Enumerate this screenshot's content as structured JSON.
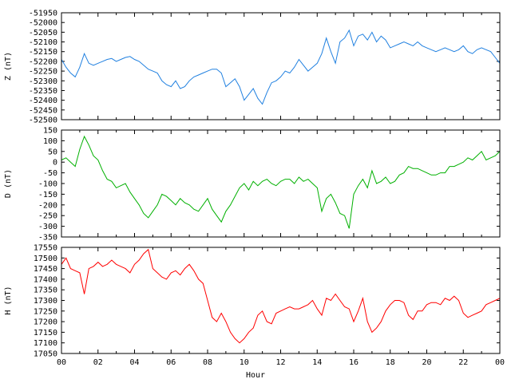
{
  "chart_data": [
    {
      "type": "line",
      "title": "",
      "xlabel": "",
      "ylabel": "Z (nT)",
      "xlim": [
        0,
        24
      ],
      "ylim": [
        -52500,
        -51950
      ],
      "yticks": [
        -51950,
        -52000,
        -52050,
        -52100,
        -52150,
        -52200,
        -52250,
        -52300,
        -52350,
        -52400,
        -52450,
        -52500
      ],
      "grid": false,
      "color": "#2080e0",
      "series": [
        {
          "x": [
            0,
            0.25,
            0.5,
            0.75,
            1.0,
            1.25,
            1.5,
            1.75,
            2.0,
            2.25,
            2.5,
            2.75,
            3.0,
            3.25,
            3.5,
            3.75,
            4.0,
            4.25,
            4.5,
            4.75,
            5.0,
            5.25,
            5.5,
            5.75,
            6.0,
            6.25,
            6.5,
            6.75,
            7.0,
            7.25,
            7.5,
            7.75,
            8.0,
            8.25,
            8.5,
            8.75,
            9.0,
            9.25,
            9.5,
            9.75,
            10.0,
            10.25,
            10.5,
            10.75,
            11.0,
            11.25,
            11.5,
            11.75,
            12.0,
            12.25,
            12.5,
            12.75,
            13.0,
            13.25,
            13.5,
            13.75,
            14.0,
            14.25,
            14.5,
            14.75,
            15.0,
            15.25,
            15.5,
            15.75,
            16.0,
            16.25,
            16.5,
            16.75,
            17.0,
            17.25,
            17.5,
            17.75,
            18.0,
            18.25,
            18.5,
            18.75,
            19.0,
            19.25,
            19.5,
            19.75,
            20.0,
            20.25,
            20.5,
            20.75,
            21.0,
            21.25,
            21.5,
            21.75,
            22.0,
            22.25,
            22.5,
            22.75,
            23.0,
            23.25,
            23.5,
            23.75,
            24.0
          ],
          "y": [
            -52190,
            -52230,
            -52260,
            -52280,
            -52230,
            -52160,
            -52210,
            -52220,
            -52210,
            -52200,
            -52190,
            -52185,
            -52200,
            -52190,
            -52180,
            -52175,
            -52190,
            -52200,
            -52220,
            -52240,
            -52250,
            -52260,
            -52300,
            -52320,
            -52330,
            -52300,
            -52340,
            -52330,
            -52300,
            -52280,
            -52270,
            -52260,
            -52250,
            -52240,
            -52240,
            -52260,
            -52330,
            -52310,
            -52290,
            -52330,
            -52400,
            -52370,
            -52340,
            -52390,
            -52420,
            -52360,
            -52310,
            -52300,
            -52280,
            -52250,
            -52260,
            -52230,
            -52190,
            -52220,
            -52250,
            -52230,
            -52210,
            -52160,
            -52080,
            -52150,
            -52210,
            -52100,
            -52080,
            -52040,
            -52120,
            -52070,
            -52060,
            -52090,
            -52050,
            -52100,
            -52070,
            -52090,
            -52130,
            -52120,
            -52110,
            -52100,
            -52110,
            -52120,
            -52100,
            -52120,
            -52130,
            -52140,
            -52150,
            -52140,
            -52130,
            -52140,
            -52150,
            -52140,
            -52120,
            -52150,
            -52160,
            -52140,
            -52130,
            -52140,
            -52150,
            -52180,
            -52210
          ]
        }
      ]
    },
    {
      "type": "line",
      "title": "",
      "xlabel": "",
      "ylabel": "D (nT)",
      "xlim": [
        0,
        24
      ],
      "ylim": [
        -350,
        150
      ],
      "yticks": [
        150,
        100,
        50,
        0,
        -50,
        -100,
        -150,
        -200,
        -250,
        -300,
        -350
      ],
      "grid": false,
      "color": "#00b000",
      "series": [
        {
          "x": [
            0,
            0.25,
            0.5,
            0.75,
            1.0,
            1.25,
            1.5,
            1.75,
            2.0,
            2.25,
            2.5,
            2.75,
            3.0,
            3.25,
            3.5,
            3.75,
            4.0,
            4.25,
            4.5,
            4.75,
            5.0,
            5.25,
            5.5,
            5.75,
            6.0,
            6.25,
            6.5,
            6.75,
            7.0,
            7.25,
            7.5,
            7.75,
            8.0,
            8.25,
            8.5,
            8.75,
            9.0,
            9.25,
            9.5,
            9.75,
            10.0,
            10.25,
            10.5,
            10.75,
            11.0,
            11.25,
            11.5,
            11.75,
            12.0,
            12.25,
            12.5,
            12.75,
            13.0,
            13.25,
            13.5,
            13.75,
            14.0,
            14.25,
            14.5,
            14.75,
            15.0,
            15.25,
            15.5,
            15.75,
            16.0,
            16.25,
            16.5,
            16.75,
            17.0,
            17.25,
            17.5,
            17.75,
            18.0,
            18.25,
            18.5,
            18.75,
            19.0,
            19.25,
            19.5,
            19.75,
            20.0,
            20.25,
            20.5,
            20.75,
            21.0,
            21.25,
            21.5,
            21.75,
            22.0,
            22.25,
            22.5,
            22.75,
            23.0,
            23.25,
            23.5,
            23.75,
            24.0
          ],
          "y": [
            10,
            20,
            0,
            -20,
            60,
            120,
            80,
            30,
            10,
            -40,
            -80,
            -90,
            -120,
            -110,
            -100,
            -140,
            -170,
            -200,
            -240,
            -260,
            -230,
            -200,
            -150,
            -160,
            -180,
            -200,
            -170,
            -190,
            -200,
            -220,
            -230,
            -200,
            -170,
            -220,
            -250,
            -280,
            -230,
            -200,
            -160,
            -120,
            -100,
            -130,
            -90,
            -110,
            -90,
            -80,
            -100,
            -110,
            -90,
            -80,
            -80,
            -100,
            -70,
            -90,
            -80,
            -100,
            -120,
            -230,
            -170,
            -150,
            -190,
            -240,
            -250,
            -310,
            -150,
            -110,
            -80,
            -120,
            -40,
            -100,
            -90,
            -70,
            -100,
            -90,
            -60,
            -50,
            -20,
            -30,
            -30,
            -40,
            -50,
            -60,
            -60,
            -50,
            -50,
            -20,
            -20,
            -10,
            0,
            20,
            10,
            30,
            50,
            10,
            20,
            30,
            50
          ]
        }
      ]
    },
    {
      "type": "line",
      "title": "",
      "xlabel": "Hour",
      "ylabel": "H (nT)",
      "xlim": [
        0,
        24
      ],
      "ylim": [
        17050,
        17550
      ],
      "yticks": [
        17550,
        17500,
        17450,
        17400,
        17350,
        17300,
        17250,
        17200,
        17150,
        17100,
        17050
      ],
      "xticks": [
        "00",
        "02",
        "04",
        "06",
        "08",
        "10",
        "12",
        "14",
        "16",
        "18",
        "20",
        "22",
        "00"
      ],
      "grid": false,
      "color": "#ff0000",
      "series": [
        {
          "x": [
            0,
            0.25,
            0.5,
            0.75,
            1.0,
            1.25,
            1.5,
            1.75,
            2.0,
            2.25,
            2.5,
            2.75,
            3.0,
            3.25,
            3.5,
            3.75,
            4.0,
            4.25,
            4.5,
            4.75,
            5.0,
            5.25,
            5.5,
            5.75,
            6.0,
            6.25,
            6.5,
            6.75,
            7.0,
            7.25,
            7.5,
            7.75,
            8.0,
            8.25,
            8.5,
            8.75,
            9.0,
            9.25,
            9.5,
            9.75,
            10.0,
            10.25,
            10.5,
            10.75,
            11.0,
            11.25,
            11.5,
            11.75,
            12.0,
            12.25,
            12.5,
            12.75,
            13.0,
            13.25,
            13.5,
            13.75,
            14.0,
            14.25,
            14.5,
            14.75,
            15.0,
            15.25,
            15.5,
            15.75,
            16.0,
            16.25,
            16.5,
            16.75,
            17.0,
            17.25,
            17.5,
            17.75,
            18.0,
            18.25,
            18.5,
            18.75,
            19.0,
            19.25,
            19.5,
            19.75,
            20.0,
            20.25,
            20.5,
            20.75,
            21.0,
            21.25,
            21.5,
            21.75,
            22.0,
            22.25,
            22.5,
            22.75,
            23.0,
            23.25,
            23.5,
            23.75,
            24.0
          ],
          "y": [
            17470,
            17500,
            17450,
            17440,
            17430,
            17330,
            17450,
            17460,
            17480,
            17460,
            17470,
            17490,
            17470,
            17460,
            17450,
            17430,
            17470,
            17490,
            17520,
            17540,
            17450,
            17430,
            17410,
            17400,
            17430,
            17440,
            17420,
            17450,
            17470,
            17440,
            17400,
            17380,
            17300,
            17220,
            17200,
            17240,
            17200,
            17150,
            17120,
            17100,
            17120,
            17150,
            17170,
            17230,
            17250,
            17200,
            17190,
            17240,
            17250,
            17260,
            17270,
            17260,
            17260,
            17270,
            17280,
            17300,
            17260,
            17230,
            17310,
            17300,
            17330,
            17300,
            17270,
            17260,
            17200,
            17250,
            17310,
            17200,
            17150,
            17170,
            17200,
            17250,
            17280,
            17300,
            17300,
            17290,
            17230,
            17210,
            17250,
            17250,
            17280,
            17290,
            17290,
            17280,
            17310,
            17300,
            17320,
            17300,
            17240,
            17220,
            17230,
            17240,
            17250,
            17280,
            17290,
            17300,
            17310
          ]
        }
      ]
    }
  ]
}
